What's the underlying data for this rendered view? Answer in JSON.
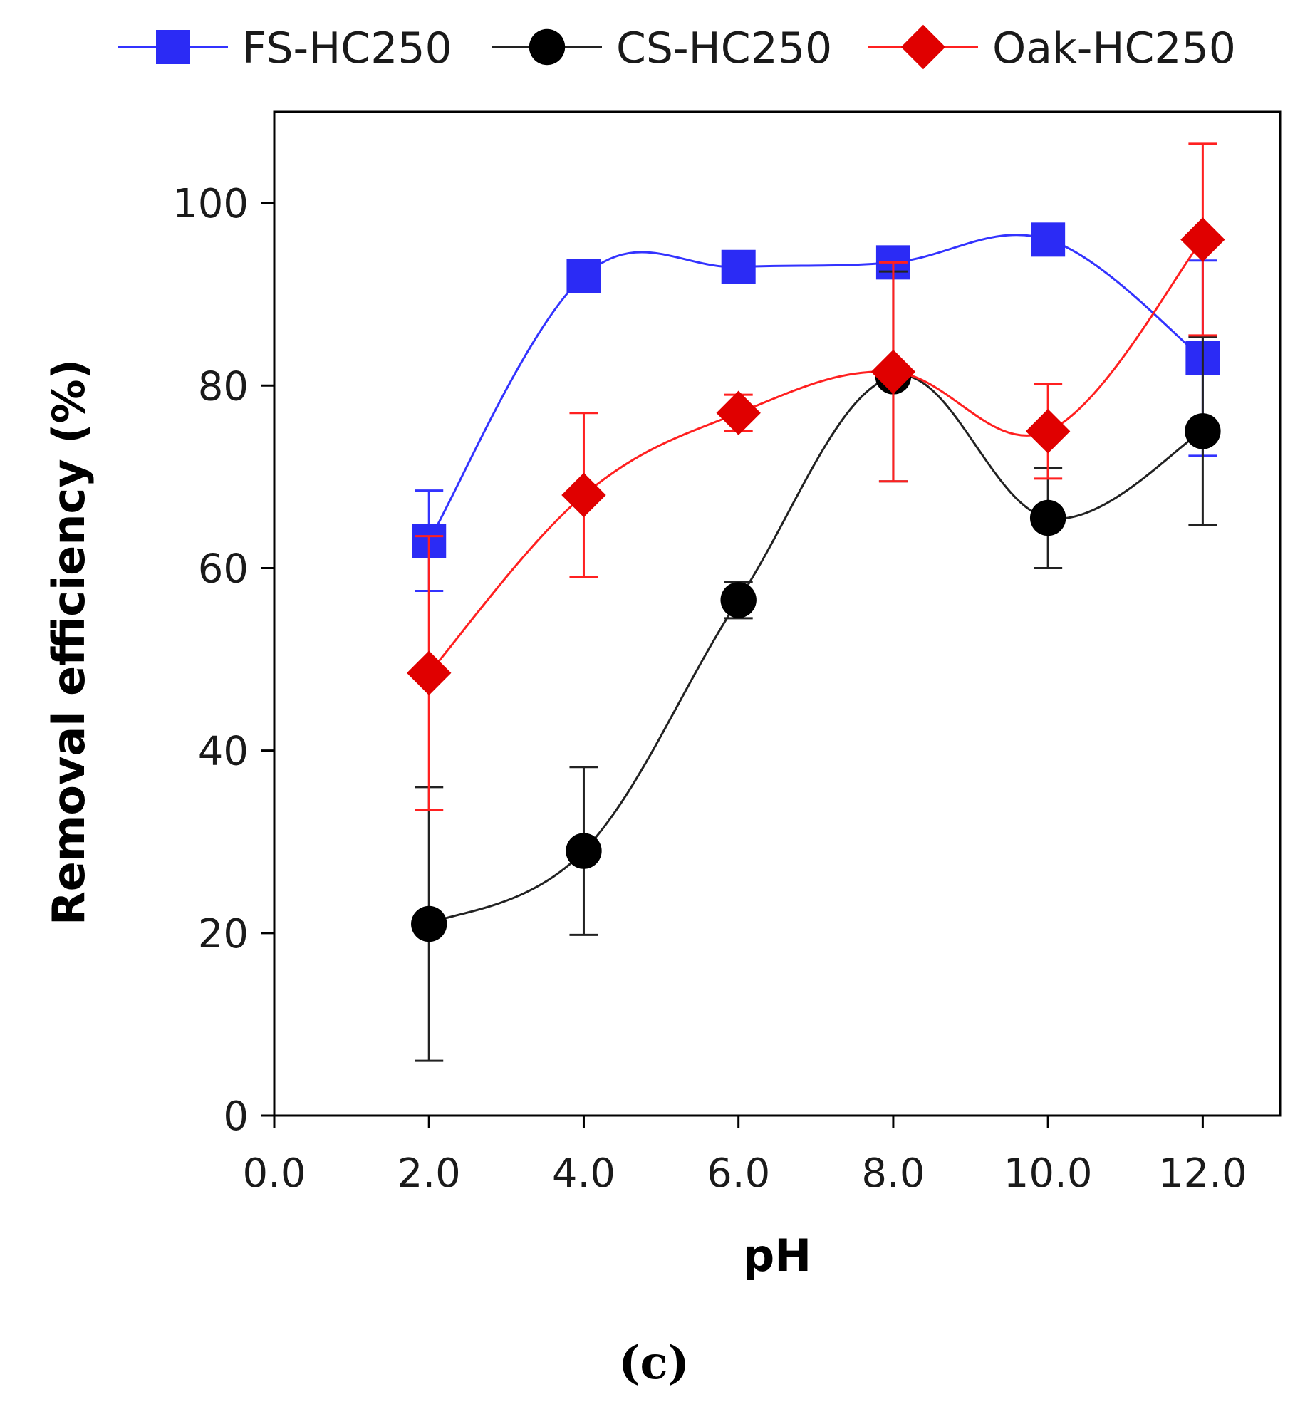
{
  "chart_data": {
    "type": "line",
    "title": "",
    "panel_label": "(c)",
    "xlabel": "pH",
    "ylabel": "Removal efficiency (%)",
    "xlim": [
      0,
      13
    ],
    "ylim": [
      0,
      110
    ],
    "x_ticks": [
      0,
      2,
      4,
      6,
      8,
      10,
      12
    ],
    "x_tick_labels": [
      "0.0",
      "2.0",
      "4.0",
      "6.0",
      "8.0",
      "10.0",
      "12.0"
    ],
    "y_ticks": [
      0,
      20,
      40,
      60,
      80,
      100
    ],
    "y_tick_labels": [
      "0",
      "20",
      "40",
      "60",
      "80",
      "100"
    ],
    "grid": false,
    "legend_position": "top",
    "x": [
      2,
      4,
      6,
      8,
      10,
      12
    ],
    "series": [
      {
        "name": "FS-HC250",
        "color": "#2b2bf5",
        "line_color": "#3333ff",
        "marker": "square",
        "values": [
          63,
          92,
          93,
          93.5,
          96,
          83
        ],
        "errors": [
          5.5,
          0,
          0,
          0,
          0,
          10.7
        ]
      },
      {
        "name": "CS-HC250",
        "color": "#000000",
        "line_color": "#222222",
        "marker": "circle",
        "values": [
          21,
          29,
          56.5,
          81,
          65.5,
          75
        ],
        "errors": [
          15,
          9.2,
          2,
          11.5,
          5.5,
          10.3
        ]
      },
      {
        "name": "Oak-HC250",
        "color": "#e00000",
        "line_color": "#ff2020",
        "marker": "diamond",
        "values": [
          48.5,
          68,
          77,
          81.5,
          75,
          96
        ],
        "errors": [
          15,
          9,
          2,
          12,
          5.2,
          10.5
        ]
      }
    ]
  }
}
